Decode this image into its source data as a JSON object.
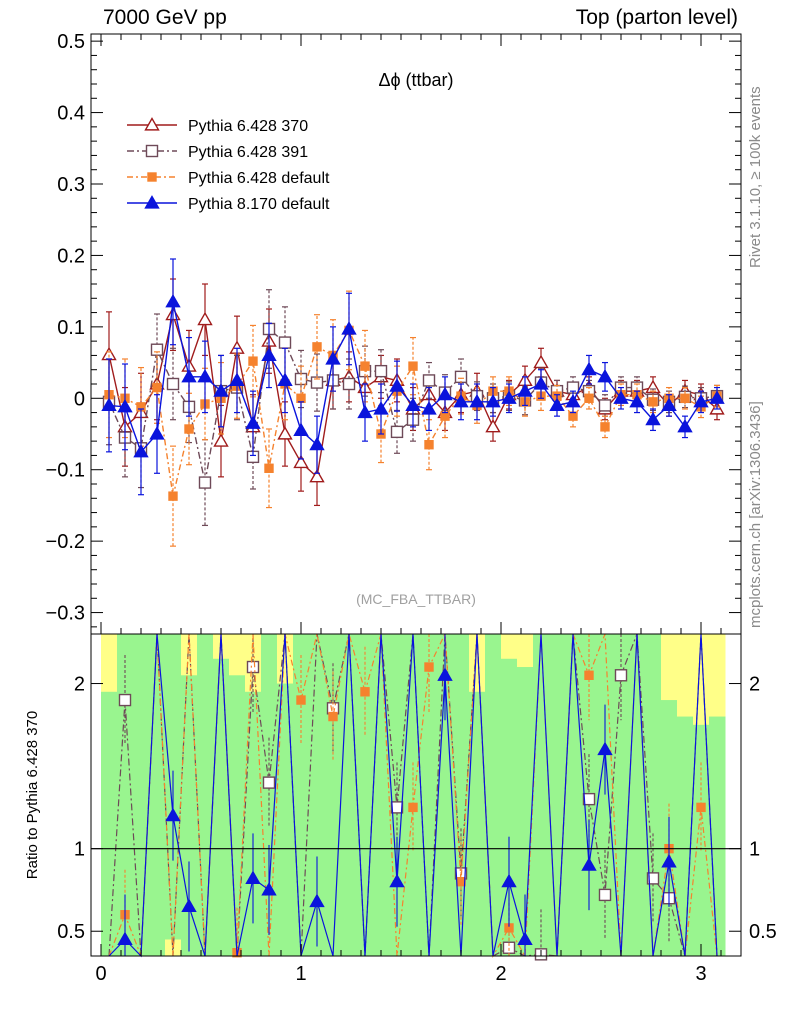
{
  "header": {
    "left": "7000 GeV pp",
    "right": "Top (parton level)"
  },
  "side_labels": {
    "rivet": "Rivet 3.1.10, ≥ 100k events",
    "mcplots": "mcplots.cern.ch [arXiv:1306.3436]"
  },
  "chart_data": [
    {
      "type": "line",
      "title": "Δϕ (ttbar)",
      "watermark": "(MC_FBA_TTBAR)",
      "xlim": [
        -0.05,
        3.2
      ],
      "ylim": [
        -0.33,
        0.51
      ],
      "xticks": [
        0,
        1,
        2,
        3
      ],
      "yticks": [
        -0.3,
        -0.2,
        -0.1,
        0,
        0.1,
        0.2,
        0.3,
        0.4,
        0.5
      ],
      "ytick_labels": [
        "−0.3",
        "−0.2",
        "−0.1",
        "0",
        "0.1",
        "0.2",
        "0.3",
        "0.4",
        "0.5"
      ],
      "legend_position": "top-left",
      "x": [
        0.04,
        0.12,
        0.2,
        0.28,
        0.36,
        0.44,
        0.52,
        0.6,
        0.68,
        0.76,
        0.84,
        0.92,
        1.0,
        1.08,
        1.16,
        1.24,
        1.32,
        1.4,
        1.48,
        1.56,
        1.64,
        1.72,
        1.8,
        1.88,
        1.96,
        2.04,
        2.12,
        2.2,
        2.28,
        2.36,
        2.44,
        2.52,
        2.6,
        2.68,
        2.76,
        2.84,
        2.92,
        3.0,
        3.08
      ],
      "series": [
        {
          "name": "Pythia 6.428 370",
          "color": "#a01c1c",
          "dash": "",
          "marker": "triangle-open",
          "values": [
            0.061,
            -0.04,
            -0.02,
            0.02,
            0.117,
            0.045,
            0.11,
            -0.06,
            0.07,
            -0.04,
            0.08,
            -0.05,
            -0.09,
            -0.11,
            0.025,
            0.03,
            0.015,
            0.03,
            0.025,
            -0.015,
            0.005,
            -0.02,
            0.005,
            0.01,
            -0.04,
            0.005,
            0.025,
            0.05,
            0.01,
            0.005,
            0.015,
            -0.015,
            0.01,
            0.01,
            0.015,
            -0.01,
            0.01,
            0.005,
            -0.015
          ],
          "errors": [
            0.06,
            0.055,
            0.055,
            0.05,
            0.05,
            0.05,
            0.05,
            0.05,
            0.045,
            0.045,
            0.045,
            0.045,
            0.04,
            0.04,
            0.04,
            0.035,
            0.035,
            0.03,
            0.03,
            0.03,
            0.025,
            0.025,
            0.025,
            0.025,
            0.02,
            0.02,
            0.02,
            0.02,
            0.015,
            0.015,
            0.015,
            0.015,
            0.015,
            0.015,
            0.015,
            0.015,
            0.015,
            0.015,
            0.015
          ]
        },
        {
          "name": "Pythia 6.428 391",
          "color": "#6e4a58",
          "dash": "7,3,2,3",
          "marker": "square-open",
          "values": [
            -0.005,
            -0.055,
            -0.07,
            0.068,
            0.02,
            -0.012,
            -0.118,
            0.01,
            0.015,
            -0.082,
            0.097,
            0.078,
            0.027,
            0.022,
            0.025,
            0.02,
            0.038,
            0.038,
            -0.047,
            -0.03,
            0.025,
            0.008,
            0.03,
            0.003,
            0.0,
            0.003,
            -0.003,
            0.022,
            0.01,
            0.015,
            0.01,
            -0.01,
            0.015,
            0.015,
            -0.002,
            -0.005,
            0.002,
            0.0,
            0.003
          ],
          "errors": [
            0.06,
            0.055,
            0.055,
            0.05,
            0.05,
            0.05,
            0.06,
            0.05,
            0.045,
            0.045,
            0.055,
            0.05,
            0.04,
            0.04,
            0.04,
            0.035,
            0.035,
            0.03,
            0.03,
            0.03,
            0.025,
            0.025,
            0.025,
            0.02,
            0.02,
            0.02,
            0.02,
            0.02,
            0.015,
            0.015,
            0.015,
            0.015,
            0.015,
            0.015,
            0.015,
            0.015,
            0.015,
            0.015,
            0.015
          ]
        },
        {
          "name": "Pythia 6.428 default",
          "color": "#f5822e",
          "dash": "6,3,2,3",
          "marker": "square-filled",
          "values": [
            0.005,
            0.0,
            -0.012,
            0.015,
            -0.137,
            -0.043,
            -0.008,
            0.0,
            0.017,
            0.052,
            -0.098,
            0.02,
            0.0,
            0.072,
            0.06,
            0.095,
            0.045,
            -0.05,
            0.01,
            0.045,
            -0.065,
            -0.025,
            0.003,
            -0.01,
            0.01,
            0.01,
            -0.005,
            0.003,
            0.003,
            -0.025,
            0.0,
            -0.04,
            0.005,
            0.005,
            -0.005,
            0.0,
            0.0,
            -0.012,
            0.003
          ],
          "errors": [
            0.06,
            0.055,
            0.055,
            0.05,
            0.07,
            0.05,
            0.05,
            0.05,
            0.045,
            0.05,
            0.055,
            0.05,
            0.045,
            0.045,
            0.05,
            0.055,
            0.05,
            0.04,
            0.035,
            0.04,
            0.035,
            0.03,
            0.025,
            0.025,
            0.02,
            0.02,
            0.02,
            0.02,
            0.015,
            0.015,
            0.015,
            0.015,
            0.015,
            0.015,
            0.015,
            0.015,
            0.015,
            0.015,
            0.015
          ]
        },
        {
          "name": "Pythia 8.170 default",
          "color": "#0a14dc",
          "dash": "",
          "marker": "triangle-filled",
          "values": [
            -0.01,
            -0.012,
            -0.075,
            -0.05,
            0.135,
            0.03,
            0.03,
            0.01,
            0.025,
            -0.035,
            0.06,
            0.025,
            -0.045,
            -0.065,
            0.055,
            0.097,
            -0.02,
            -0.015,
            0.017,
            -0.01,
            -0.015,
            0.005,
            -0.005,
            -0.005,
            -0.005,
            0.0,
            0.01,
            0.02,
            -0.01,
            -0.005,
            0.04,
            0.03,
            0.0,
            -0.005,
            -0.03,
            -0.01,
            -0.04,
            -0.005,
            0.0
          ],
          "errors": [
            0.065,
            0.06,
            0.06,
            0.055,
            0.06,
            0.055,
            0.05,
            0.05,
            0.045,
            0.045,
            0.045,
            0.045,
            0.04,
            0.04,
            0.045,
            0.05,
            0.04,
            0.035,
            0.035,
            0.03,
            0.03,
            0.025,
            0.025,
            0.025,
            0.02,
            0.02,
            0.02,
            0.02,
            0.015,
            0.015,
            0.02,
            0.02,
            0.015,
            0.015,
            0.015,
            0.015,
            0.015,
            0.015,
            0.015
          ]
        }
      ]
    },
    {
      "type": "line",
      "ylabel": "Ratio to Pythia 6.428 370",
      "ylim": [
        0.35,
        2.3
      ],
      "yticks": [
        0.5,
        1,
        2
      ],
      "ytick_labels": [
        "0.5",
        "1",
        "2"
      ],
      "reference": 1,
      "band_yellow_upper": [
        2.3,
        2.3,
        2.3,
        2.3,
        2.3,
        2.3,
        2.3,
        2.3,
        2.3,
        2.3,
        2.3,
        2.3,
        2.3,
        2.3,
        2.3,
        2.3,
        2.3,
        2.3,
        2.3,
        2.3,
        2.3,
        2.3,
        2.3,
        2.3,
        2.3,
        2.3,
        2.3,
        2.3,
        2.3,
        2.3,
        2.3,
        2.3,
        2.3,
        2.3,
        2.3,
        2.3,
        2.3,
        2.3,
        2.3
      ],
      "band_yellow_lower": [
        0.35,
        0.35,
        0.35,
        0.35,
        0.35,
        0.35,
        0.35,
        0.35,
        0.35,
        0.35,
        0.35,
        0.35,
        0.35,
        0.35,
        0.35,
        0.35,
        0.35,
        0.35,
        0.35,
        0.35,
        0.35,
        0.35,
        0.35,
        0.35,
        0.35,
        0.35,
        0.35,
        0.35,
        0.35,
        0.35,
        0.35,
        0.35,
        0.35,
        0.35,
        0.35,
        0.35,
        0.35,
        0.35,
        0.35
      ],
      "band_green_upper": [
        1.95,
        2.3,
        2.3,
        2.3,
        2.3,
        2.05,
        2.3,
        2.15,
        2.05,
        1.95,
        2.3,
        2.0,
        2.3,
        2.3,
        2.3,
        2.3,
        2.3,
        2.3,
        2.3,
        2.3,
        2.3,
        2.3,
        2.3,
        1.95,
        2.3,
        2.15,
        2.1,
        2.3,
        2.3,
        2.3,
        2.3,
        2.3,
        2.3,
        2.3,
        2.3,
        1.9,
        1.8,
        1.75,
        1.8
      ],
      "band_green_lower": [
        0.35,
        0.35,
        0.35,
        0.35,
        0.45,
        0.35,
        0.35,
        0.35,
        0.35,
        0.35,
        0.35,
        0.35,
        0.35,
        0.35,
        0.35,
        0.35,
        0.35,
        0.35,
        0.35,
        0.35,
        0.35,
        0.35,
        0.35,
        0.35,
        0.35,
        0.35,
        0.35,
        0.35,
        0.35,
        0.35,
        0.35,
        0.35,
        0.35,
        0.35,
        0.35,
        0.35,
        0.35,
        0.35,
        0.35
      ],
      "series": [
        {
          "name": "Pythia 6.428 391",
          "values": [
            null,
            1.9,
            null,
            null,
            null,
            null,
            null,
            null,
            null,
            2.1,
            1.4,
            null,
            null,
            null,
            1.85,
            null,
            null,
            null,
            1.25,
            null,
            null,
            null,
            0.85,
            null,
            null,
            0.4,
            null,
            0.36,
            null,
            null,
            1.3,
            0.72,
            2.05,
            null,
            0.82,
            0.7,
            null,
            null,
            null
          ]
        },
        {
          "name": "Pythia 6.428 default",
          "values": [
            null,
            0.6,
            null,
            null,
            null,
            null,
            null,
            null,
            0.37,
            null,
            null,
            null,
            1.9,
            null,
            1.8,
            null,
            1.95,
            null,
            null,
            1.25,
            2.1,
            null,
            0.8,
            null,
            null,
            0.52,
            null,
            null,
            null,
            null,
            2.05,
            null,
            null,
            null,
            null,
            1.0,
            null,
            1.25,
            null
          ]
        },
        {
          "name": "Pythia 8.170 default",
          "values": [
            null,
            0.45,
            null,
            null,
            1.2,
            0.65,
            null,
            null,
            null,
            0.82,
            0.75,
            null,
            null,
            0.68,
            null,
            null,
            null,
            null,
            0.8,
            null,
            null,
            2.05,
            null,
            null,
            null,
            0.8,
            0.45,
            null,
            null,
            null,
            0.9,
            1.6,
            null,
            null,
            null,
            0.92,
            null,
            null,
            null
          ]
        }
      ]
    }
  ]
}
